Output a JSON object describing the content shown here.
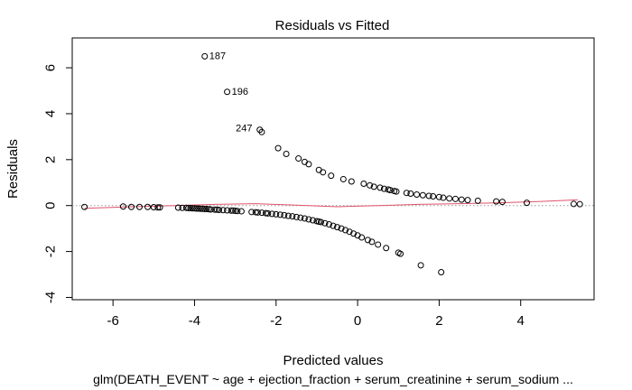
{
  "chart_data": {
    "type": "scatter",
    "title": "Residuals vs Fitted",
    "xlabel": "Predicted values",
    "ylabel": "Residuals",
    "subtitle": "glm(DEATH_EVENT ~ age + ejection_fraction + serum_creatinine + serum_sodium ...",
    "xlim": [
      -7.0,
      5.8
    ],
    "ylim": [
      -4.1,
      7.3
    ],
    "x_ticks": [
      -6,
      -4,
      -2,
      0,
      2,
      4
    ],
    "y_ticks": [
      -4,
      -2,
      0,
      2,
      4,
      6
    ],
    "x_tick_labels": [
      "-6",
      "-4",
      "-2",
      "0",
      "2",
      "4"
    ],
    "y_tick_labels": [
      "-4",
      "-2",
      "0",
      "2",
      "4",
      "6"
    ],
    "grid": false,
    "reference_line": {
      "y": 0,
      "style": "dotted",
      "color": "#999999"
    },
    "smooth_color": "#df536b",
    "point_color": "#000000",
    "annotations": [
      {
        "label": "187",
        "x": -3.75,
        "y": 6.5,
        "position": "right"
      },
      {
        "label": "196",
        "x": -3.2,
        "y": 4.95,
        "position": "right"
      },
      {
        "label": "247",
        "x": -2.45,
        "y": 3.35,
        "position": "left"
      }
    ],
    "smooth": {
      "x": [
        -6.7,
        -5.5,
        -4.5,
        -3.5,
        -2.5,
        -1.5,
        -0.5,
        0.5,
        1.5,
        2.5,
        3.5,
        4.5,
        5.4
      ],
      "y": [
        -0.12,
        -0.05,
        0.0,
        0.05,
        0.08,
        0.02,
        -0.05,
        0.0,
        0.05,
        0.08,
        0.12,
        0.18,
        0.25
      ]
    },
    "points": {
      "x": [
        -6.7,
        -5.75,
        -5.55,
        -5.35,
        -5.15,
        -5.0,
        -4.9,
        -4.85,
        -4.4,
        -4.3,
        -4.2,
        -4.15,
        -4.1,
        -4.05,
        -4.0,
        -3.95,
        -3.9,
        -3.85,
        -3.8,
        -3.75,
        -3.7,
        -3.65,
        -3.6,
        -3.5,
        -3.45,
        -3.4,
        -3.3,
        -3.2,
        -3.1,
        -3.05,
        -3.0,
        -2.95,
        -2.85,
        -2.6,
        -2.5,
        -2.45,
        -2.35,
        -2.25,
        -2.2,
        -2.1,
        -2.0,
        -1.9,
        -1.8,
        -1.7,
        -1.6,
        -1.5,
        -1.4,
        -1.3,
        -1.2,
        -1.1,
        -1.0,
        -0.95,
        -0.9,
        -0.8,
        -0.7,
        -0.6,
        -0.5,
        -0.4,
        -0.3,
        -0.2,
        -0.1,
        0.0,
        0.1,
        0.25,
        0.35,
        0.5,
        0.7,
        1.0,
        1.05,
        1.55,
        2.05,
        -3.75,
        -3.2,
        -2.4,
        -2.35,
        -1.95,
        -1.75,
        -1.45,
        -1.3,
        -1.2,
        -0.95,
        -0.85,
        -0.65,
        -0.35,
        -0.15,
        0.15,
        0.3,
        0.4,
        0.55,
        0.65,
        0.75,
        0.8,
        0.9,
        0.95,
        1.2,
        1.3,
        1.45,
        1.6,
        1.75,
        1.85,
        2.0,
        2.1,
        2.25,
        2.4,
        2.55,
        2.7,
        2.95,
        3.4,
        3.55,
        4.15,
        5.3,
        5.45
      ],
      "y": [
        -0.06,
        -0.04,
        -0.06,
        -0.06,
        -0.06,
        -0.07,
        -0.08,
        -0.08,
        -0.09,
        -0.1,
        -0.1,
        -0.11,
        -0.11,
        -0.12,
        -0.12,
        -0.13,
        -0.13,
        -0.14,
        -0.14,
        -0.15,
        -0.15,
        -0.16,
        -0.17,
        -0.18,
        -0.18,
        -0.19,
        -0.2,
        -0.21,
        -0.22,
        -0.22,
        -0.23,
        -0.24,
        -0.25,
        -0.28,
        -0.29,
        -0.3,
        -0.31,
        -0.33,
        -0.34,
        -0.36,
        -0.38,
        -0.4,
        -0.42,
        -0.45,
        -0.47,
        -0.5,
        -0.53,
        -0.56,
        -0.6,
        -0.64,
        -0.68,
        -0.7,
        -0.72,
        -0.77,
        -0.82,
        -0.88,
        -0.94,
        -1.0,
        -1.07,
        -1.14,
        -1.22,
        -1.3,
        -1.39,
        -1.5,
        -1.58,
        -1.7,
        -1.85,
        -2.05,
        -2.1,
        -2.6,
        -2.9,
        6.5,
        4.95,
        3.3,
        3.2,
        2.5,
        2.25,
        2.05,
        1.9,
        1.8,
        1.55,
        1.45,
        1.3,
        1.15,
        1.05,
        0.95,
        0.88,
        0.82,
        0.78,
        0.73,
        0.7,
        0.67,
        0.63,
        0.61,
        0.55,
        0.52,
        0.48,
        0.45,
        0.42,
        0.4,
        0.37,
        0.34,
        0.31,
        0.29,
        0.26,
        0.24,
        0.21,
        0.18,
        0.16,
        0.12,
        0.07,
        0.06
      ]
    }
  }
}
